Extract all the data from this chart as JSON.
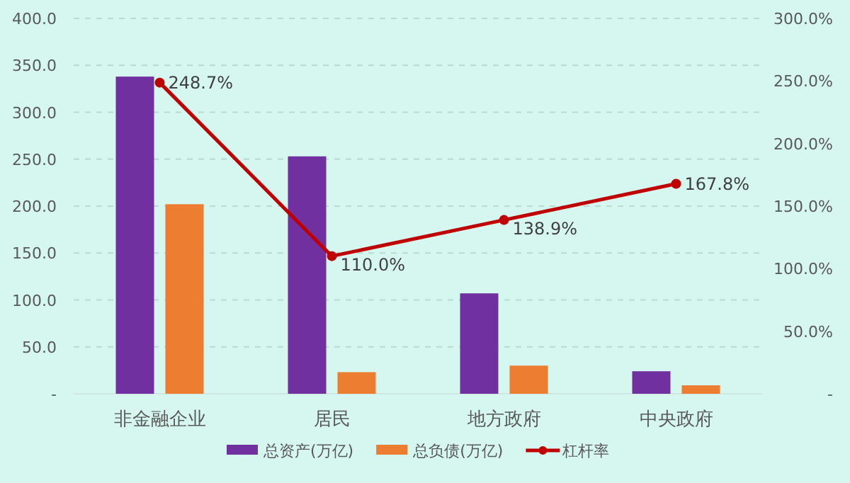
{
  "chart_data": {
    "type": "bar",
    "categories": [
      "非金融企业",
      "居民",
      "地方政府",
      "中央政府"
    ],
    "series": [
      {
        "name": "总资产(万亿)",
        "color": "#7030a0",
        "values": [
          338,
          253,
          107,
          24
        ]
      },
      {
        "name": "总负债(万亿)",
        "color": "#ed7d31",
        "values": [
          202,
          23,
          30,
          9
        ]
      },
      {
        "name": "杠杆率",
        "type": "line",
        "axis": "y2",
        "color": "#c00000",
        "marker": "circle",
        "values": [
          248.7,
          110.0,
          138.9,
          167.8
        ],
        "value_labels": [
          "248.7%",
          "110.0%",
          "138.9%",
          "167.8%"
        ]
      }
    ],
    "ylim": [
      0,
      400
    ],
    "yticks": [
      {
        "value": 0,
        "label": "-"
      },
      {
        "value": 50,
        "label": "50.0"
      },
      {
        "value": 100,
        "label": "100.0"
      },
      {
        "value": 150,
        "label": "150.0"
      },
      {
        "value": 200,
        "label": "200.0"
      },
      {
        "value": 250,
        "label": "250.0"
      },
      {
        "value": 300,
        "label": "300.0"
      },
      {
        "value": 350,
        "label": "350.0"
      },
      {
        "value": 400,
        "label": "400.0"
      }
    ],
    "y2lim": [
      0,
      300
    ],
    "y2ticks": [
      {
        "value": 0,
        "label": "-"
      },
      {
        "value": 50,
        "label": "50.0%"
      },
      {
        "value": 100,
        "label": "100.0%"
      },
      {
        "value": 150,
        "label": "150.0%"
      },
      {
        "value": 200,
        "label": "200.0%"
      },
      {
        "value": 250,
        "label": "250.0%"
      },
      {
        "value": 300,
        "label": "300.0%"
      }
    ],
    "grid": "y",
    "legend": "bottom"
  }
}
